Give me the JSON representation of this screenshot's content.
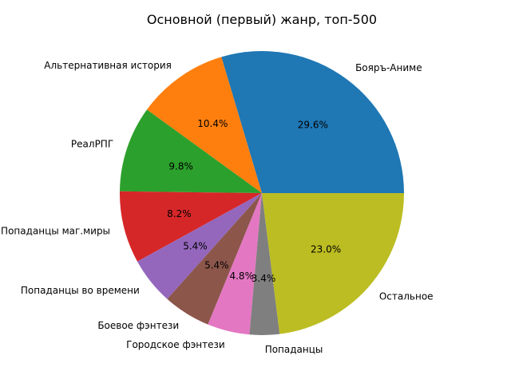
{
  "chart_data": {
    "type": "pie",
    "title": "Основной (первый) жанр, топ-500",
    "start_angle_deg": 0,
    "direction": "counterclockwise",
    "slices": [
      {
        "label": "Бояръ-Аниме",
        "value": 29.6,
        "pct_label": "29.6%",
        "color": "#1f77b4"
      },
      {
        "label": "Альтернативная история",
        "value": 10.4,
        "pct_label": "10.4%",
        "color": "#ff7f0e"
      },
      {
        "label": "РеалРПГ",
        "value": 9.8,
        "pct_label": "9.8%",
        "color": "#2ca02c"
      },
      {
        "label": "Попаданцы маг.миры",
        "value": 8.2,
        "pct_label": "8.2%",
        "color": "#d62728"
      },
      {
        "label": "Попаданцы во времени",
        "value": 5.4,
        "pct_label": "5.4%",
        "color": "#9467bd"
      },
      {
        "label": "Боевое фэнтези",
        "value": 5.4,
        "pct_label": "5.4%",
        "color": "#8c564b"
      },
      {
        "label": "Городское фэнтези",
        "value": 4.8,
        "pct_label": "4.8%",
        "color": "#e377c2"
      },
      {
        "label": "Попаданцы",
        "value": 3.4,
        "pct_label": "3.4%",
        "color": "#7f7f7f"
      },
      {
        "label": "Остальное",
        "value": 23.0,
        "pct_label": "23.0%",
        "color": "#bcbd22"
      }
    ]
  }
}
